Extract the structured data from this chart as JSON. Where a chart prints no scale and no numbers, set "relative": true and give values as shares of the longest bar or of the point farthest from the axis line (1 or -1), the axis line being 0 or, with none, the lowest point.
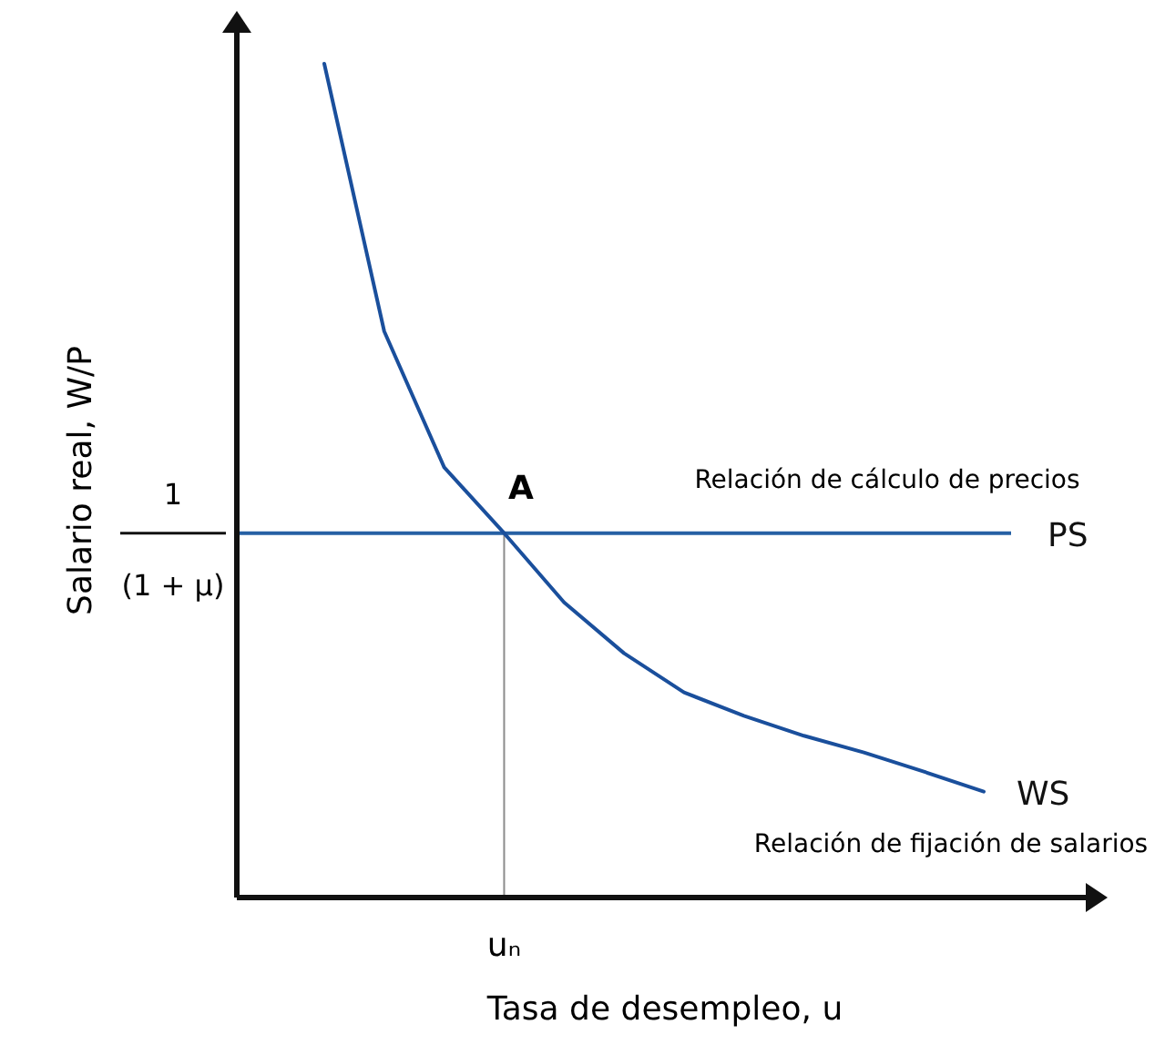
{
  "chart_data": {
    "type": "line",
    "relative": true,
    "xlabel": "Tasa de desempleo, u",
    "ylabel": "Salario real, W/P",
    "tick_labels": "x",
    "categories": [
      null,
      null,
      null,
      null,
      null,
      null,
      null,
      null,
      null,
      null,
      null,
      null
    ],
    "series": [
      {
        "name": "WS",
        "color": "#1a4f9c",
        "values": [
          1.0,
          0.679,
          0.516,
          0.437,
          0.354,
          0.293,
          0.246,
          0.218,
          0.194,
          0.174,
          0.151,
          0.127
        ]
      }
    ],
    "ref_lines": [
      {
        "axis": "y",
        "value": 0.437,
        "label": "PS",
        "color": "#2660a4"
      },
      {
        "axis": "x",
        "label": "uₙ",
        "color": "#8c8c8c"
      }
    ],
    "annotations": [
      "A",
      "Relación de cálculo de precios",
      "Relación de fijación de salarios",
      "1",
      "(1 + μ)"
    ]
  }
}
